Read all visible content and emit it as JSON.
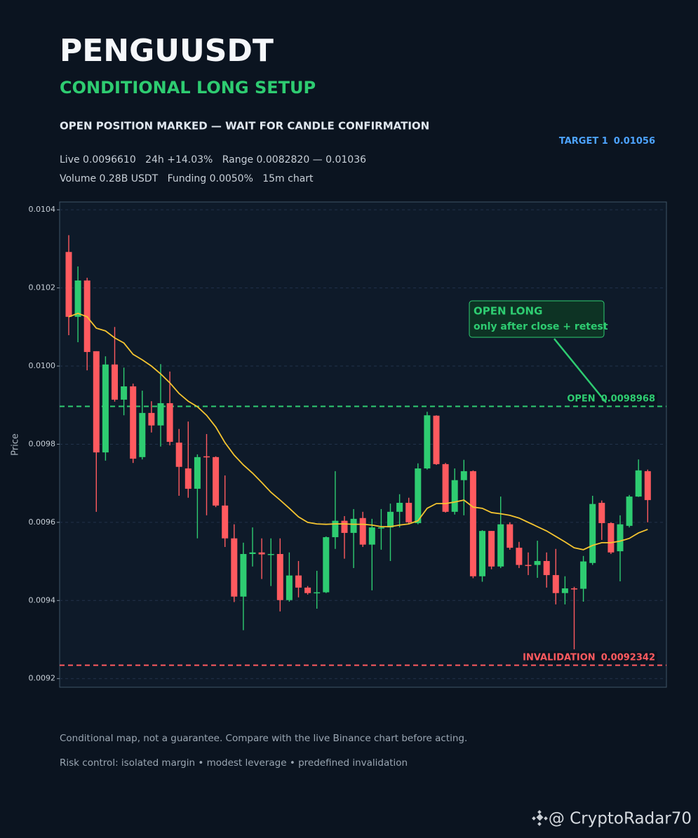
{
  "chart_data": {
    "type": "candlestick",
    "title": "PENGUUSDT",
    "subtitle": "CONDITIONAL LONG SETUP",
    "headline": "OPEN POSITION MARKED — WAIT FOR CANDLE CONFIRMATION",
    "stats": [
      "Live 0.0096610   24h +14.03%   Range 0.0082820 — 0.01036",
      "Volume 0.28B USDT   Funding 0.0050%   15m chart"
    ],
    "target": {
      "label": "TARGET 1",
      "value": 0.01056,
      "color": "#4da3ff"
    },
    "levels": [
      {
        "label": "OPEN",
        "value": 0.0098968,
        "color": "#2ecc71"
      },
      {
        "label": "INVALIDATION",
        "value": 0.0092342,
        "color": "#ff5a5f"
      }
    ],
    "annotation": [
      "OPEN LONG",
      "only after close + retest"
    ],
    "ylabel": "Price",
    "ylim": [
      0.009178,
      0.01042
    ],
    "yticks": [
      0.0092,
      0.0094,
      0.0096,
      0.0098,
      {
        "value": 0.01,
        "label": "0.0100"
      },
      0.0102,
      0.0104
    ],
    "grid": true,
    "up_color": "#2ecc71",
    "down_color": "#ff5a5f",
    "open": [
      0.010292,
      0.010126,
      0.010219,
      0.010038,
      0.009779,
      0.010004,
      0.009914,
      0.009948,
      0.009767,
      0.00988,
      0.009848,
      0.009905,
      0.009804,
      0.009738,
      0.009686,
      0.009769,
      0.009767,
      0.009643,
      0.009559,
      0.00941,
      0.009519,
      0.009523,
      0.009518,
      0.009519,
      0.009401,
      0.009464,
      0.009433,
      0.009419,
      0.009421,
      0.009562,
      0.009604,
      0.009573,
      0.009611,
      0.009543,
      0.009586,
      0.009587,
      0.009627,
      0.00965,
      0.009598,
      0.009738,
      0.009873,
      0.009749,
      0.009627,
      0.009708,
      0.009731,
      0.009462,
      0.009578,
      0.009487,
      0.009595,
      0.009535,
      0.009491,
      0.009491,
      0.009501,
      0.009465,
      0.009419,
      0.009431,
      0.00943,
      0.009496,
      0.00965,
      0.009598,
      0.009526,
      0.009591,
      0.009666,
      0.009731
    ],
    "high": [
      0.010335,
      0.010255,
      0.010226,
      0.010038,
      0.010025,
      0.0101,
      0.009996,
      0.009955,
      0.009937,
      0.00991,
      0.010005,
      0.009986,
      0.009839,
      0.009858,
      0.009774,
      0.009826,
      0.009769,
      0.00972,
      0.009595,
      0.009548,
      0.009587,
      0.009559,
      0.009559,
      0.009559,
      0.009523,
      0.009501,
      0.009437,
      0.009476,
      0.009564,
      0.009731,
      0.009616,
      0.009634,
      0.009627,
      0.009609,
      0.009634,
      0.009648,
      0.009672,
      0.009663,
      0.009751,
      0.009883,
      0.009874,
      0.009752,
      0.009738,
      0.00976,
      0.009733,
      0.00958,
      0.009578,
      0.009666,
      0.0096,
      0.00955,
      0.009523,
      0.009553,
      0.009523,
      0.009532,
      0.009462,
      0.009435,
      0.009514,
      0.009668,
      0.009656,
      0.0096,
      0.009618,
      0.00967,
      0.009761,
      0.009735
    ],
    "low": [
      0.010079,
      0.010061,
      0.009989,
      0.009627,
      0.009758,
      0.009909,
      0.009874,
      0.009752,
      0.009761,
      0.00983,
      0.009794,
      0.009797,
      0.009668,
      0.009663,
      0.009559,
      0.009618,
      0.009639,
      0.009537,
      0.009396,
      0.009324,
      0.009487,
      0.009455,
      0.009437,
      0.009372,
      0.009397,
      0.009408,
      0.009415,
      0.009379,
      0.009419,
      0.009532,
      0.009507,
      0.009483,
      0.009537,
      0.009426,
      0.00953,
      0.009501,
      0.009587,
      0.009595,
      0.009595,
      0.009735,
      0.009747,
      0.009625,
      0.00962,
      0.009618,
      0.009457,
      0.009448,
      0.00948,
      0.009483,
      0.00953,
      0.009483,
      0.009465,
      0.009458,
      0.009433,
      0.00939,
      0.00939,
      0.009275,
      0.009397,
      0.009491,
      0.009555,
      0.009519,
      0.009449,
      0.009587,
      0.009665,
      0.0096
    ],
    "close": [
      0.010126,
      0.010219,
      0.010036,
      0.009779,
      0.010004,
      0.009914,
      0.009948,
      0.009763,
      0.00988,
      0.009848,
      0.009905,
      0.009806,
      0.009742,
      0.009686,
      0.009767,
      0.009767,
      0.009643,
      0.009559,
      0.00941,
      0.009519,
      0.009523,
      0.009518,
      0.009519,
      0.009401,
      0.009464,
      0.009433,
      0.009419,
      0.009421,
      0.009562,
      0.009604,
      0.009573,
      0.009609,
      0.009543,
      0.009587,
      0.009587,
      0.009627,
      0.00965,
      0.0096,
      0.009738,
      0.009874,
      0.009749,
      0.009627,
      0.009708,
      0.009731,
      0.009462,
      0.009578,
      0.009487,
      0.009595,
      0.009535,
      0.009491,
      0.009489,
      0.009501,
      0.009465,
      0.009419,
      0.009431,
      0.00943,
      0.0095,
      0.009647,
      0.009598,
      0.009523,
      0.009595,
      0.009666,
      0.009733,
      0.009657
    ],
    "ma": {
      "color": "#f4c430",
      "values": [
        0.010126,
        0.010135,
        0.010126,
        0.010097,
        0.01009,
        0.010072,
        0.010059,
        0.01003,
        0.010016,
        0.01,
        0.00998,
        0.009957,
        0.00993,
        0.00991,
        0.009896,
        0.009874,
        0.009844,
        0.009804,
        0.009772,
        0.009747,
        0.009726,
        0.009702,
        0.009677,
        0.009657,
        0.009636,
        0.009614,
        0.0096,
        0.009596,
        0.009595,
        0.009596,
        0.009596,
        0.009595,
        0.009595,
        0.009593,
        0.009589,
        0.009589,
        0.009593,
        0.009596,
        0.009604,
        0.009636,
        0.009648,
        0.009648,
        0.009652,
        0.009657,
        0.009639,
        0.009636,
        0.009625,
        0.009622,
        0.009618,
        0.009611,
        0.0096,
        0.009589,
        0.009578,
        0.009564,
        0.00955,
        0.009535,
        0.00953,
        0.009541,
        0.009548,
        0.009548,
        0.009552,
        0.009559,
        0.009573,
        0.009582
      ]
    }
  },
  "footer": [
    "Conditional map, not a guarantee. Compare with the live Binance chart before acting.",
    "Risk control: isolated margin • modest leverage • predefined invalidation"
  ],
  "watermark": "@ CryptoRadar70"
}
